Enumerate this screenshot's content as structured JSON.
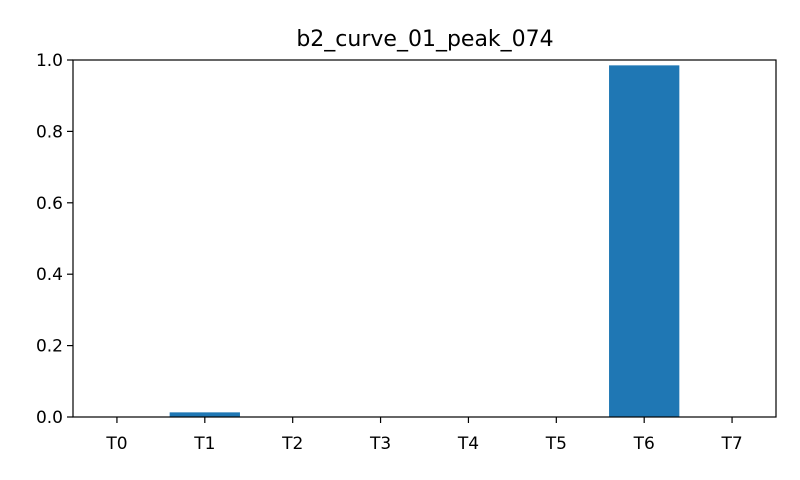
{
  "chart_data": {
    "type": "bar",
    "title": "b2_curve_01_peak_074",
    "xlabel": "",
    "ylabel": "",
    "categories": [
      "T0",
      "T1",
      "T2",
      "T3",
      "T4",
      "T5",
      "T6",
      "T7"
    ],
    "values": [
      0.0,
      0.013,
      0.0,
      0.0,
      0.0,
      0.0,
      0.985,
      0.0
    ],
    "ylim": [
      0,
      1.0
    ],
    "yticks": [
      "0.0",
      "0.2",
      "0.4",
      "0.6",
      "0.8",
      "1.0"
    ],
    "grid": false,
    "legend": "none",
    "bar_color": "#1f77b4"
  }
}
